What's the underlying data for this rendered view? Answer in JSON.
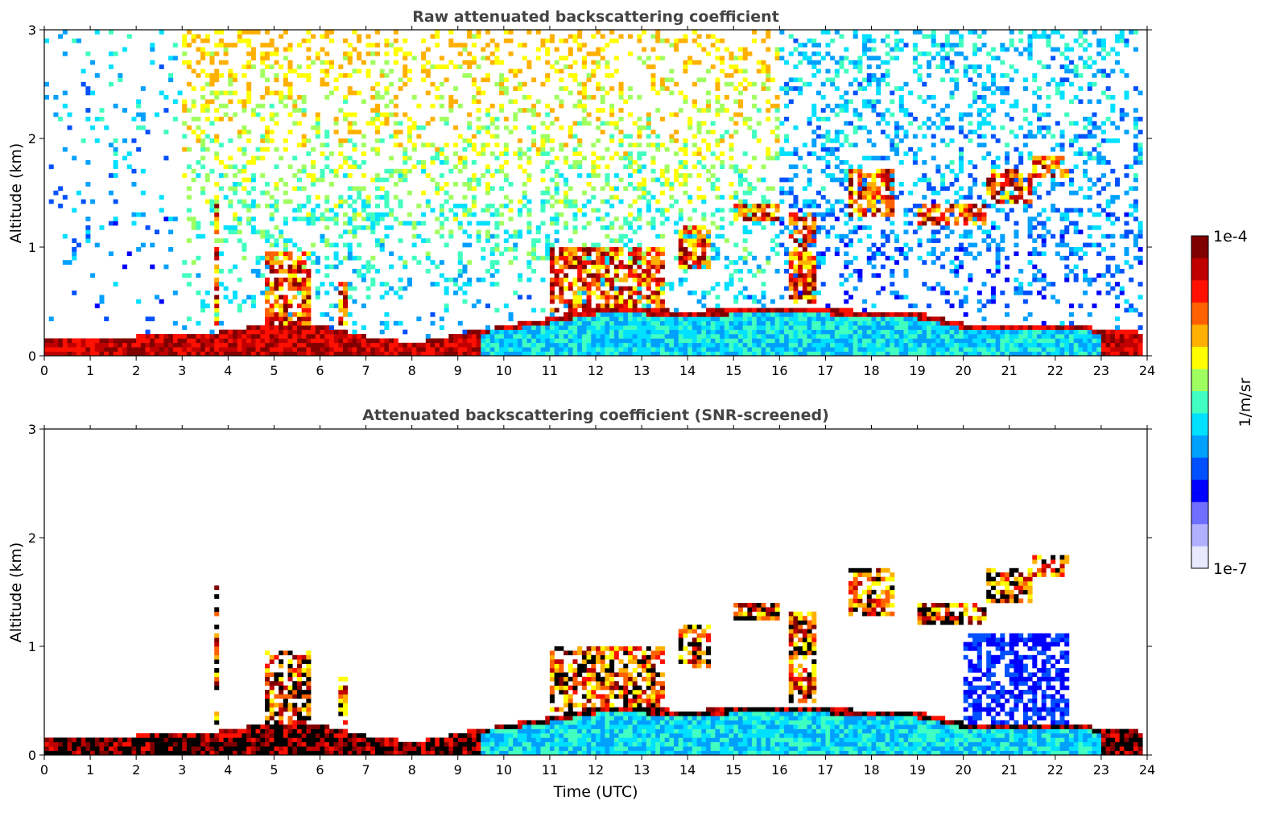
{
  "chart_data": [
    {
      "type": "heatmap",
      "title": "Raw attenuated backscattering coefficient",
      "xlabel": "",
      "ylabel": "Altitude (km)",
      "xlim": [
        0,
        24
      ],
      "ylim": [
        0,
        3
      ],
      "xticks": [
        "0",
        "1",
        "2",
        "3",
        "4",
        "5",
        "6",
        "7",
        "8",
        "9",
        "10",
        "11",
        "12",
        "13",
        "14",
        "15",
        "16",
        "17",
        "18",
        "19",
        "20",
        "21",
        "22",
        "23",
        "24"
      ],
      "yticks": [
        "0",
        "1",
        "2",
        "3"
      ],
      "mode": "raw",
      "layer_top_km": [
        {
          "t": 0,
          "h": 0.14
        },
        {
          "t": 2,
          "h": 0.18
        },
        {
          "t": 3.5,
          "h": 0.2
        },
        {
          "t": 5,
          "h": 0.3
        },
        {
          "t": 6,
          "h": 0.28
        },
        {
          "t": 7,
          "h": 0.18
        },
        {
          "t": 8,
          "h": 0.12
        },
        {
          "t": 9,
          "h": 0.2
        },
        {
          "t": 10,
          "h": 0.28
        },
        {
          "t": 11,
          "h": 0.35
        },
        {
          "t": 12,
          "h": 0.45
        },
        {
          "t": 13,
          "h": 0.45
        },
        {
          "t": 14,
          "h": 0.4
        },
        {
          "t": 15,
          "h": 0.45
        },
        {
          "t": 16,
          "h": 0.45
        },
        {
          "t": 17,
          "h": 0.45
        },
        {
          "t": 18,
          "h": 0.4
        },
        {
          "t": 19,
          "h": 0.4
        },
        {
          "t": 20,
          "h": 0.3
        },
        {
          "t": 21,
          "h": 0.3
        },
        {
          "t": 22,
          "h": 0.3
        },
        {
          "t": 23,
          "h": 0.25
        },
        {
          "t": 23.8,
          "h": 0.22
        }
      ],
      "cloud_layers_km": [
        {
          "t0": 3.7,
          "t1": 3.85,
          "z0": 0.3,
          "z1": 1.6
        },
        {
          "t0": 4.8,
          "t1": 5.8,
          "z0": 0.3,
          "z1": 0.95
        },
        {
          "t0": 6.4,
          "t1": 6.6,
          "z0": 0.3,
          "z1": 0.7
        },
        {
          "t0": 11.0,
          "t1": 13.5,
          "z0": 0.4,
          "z1": 1.0
        },
        {
          "t0": 13.8,
          "t1": 14.5,
          "z0": 0.8,
          "z1": 1.2
        },
        {
          "t0": 15.0,
          "t1": 16.0,
          "z0": 1.25,
          "z1": 1.4
        },
        {
          "t0": 16.2,
          "t1": 16.8,
          "z0": 0.5,
          "z1": 1.3
        },
        {
          "t0": 17.5,
          "t1": 18.5,
          "z0": 1.3,
          "z1": 1.7
        },
        {
          "t0": 19.0,
          "t1": 20.5,
          "z0": 1.2,
          "z1": 1.4
        },
        {
          "t0": 20.5,
          "t1": 21.5,
          "z0": 1.4,
          "z1": 1.7
        },
        {
          "t0": 21.5,
          "t1": 22.3,
          "z0": 1.65,
          "z1": 1.85
        }
      ]
    },
    {
      "type": "heatmap",
      "title": "Attenuated backscattering coefficient (SNR-screened)",
      "xlabel": "Time (UTC)",
      "ylabel": "Altitude (km)",
      "xlim": [
        0,
        24
      ],
      "ylim": [
        0,
        3
      ],
      "xticks": [
        "0",
        "1",
        "2",
        "3",
        "4",
        "5",
        "6",
        "7",
        "8",
        "9",
        "10",
        "11",
        "12",
        "13",
        "14",
        "15",
        "16",
        "17",
        "18",
        "19",
        "20",
        "21",
        "22",
        "23",
        "24"
      ],
      "yticks": [
        "0",
        "1",
        "2",
        "3"
      ],
      "mode": "screened"
    }
  ],
  "colorbar": {
    "label": "1/m/sr",
    "max_label": "1e-4",
    "min_label": "1e-7",
    "colors": [
      "#e8e8ff",
      "#b0b0ff",
      "#6f6fff",
      "#0000ff",
      "#0050ff",
      "#00a0ff",
      "#00e0ff",
      "#40ffc0",
      "#a0ff60",
      "#ffff00",
      "#ffb000",
      "#ff6000",
      "#ff1000",
      "#c00000",
      "#800000"
    ]
  }
}
